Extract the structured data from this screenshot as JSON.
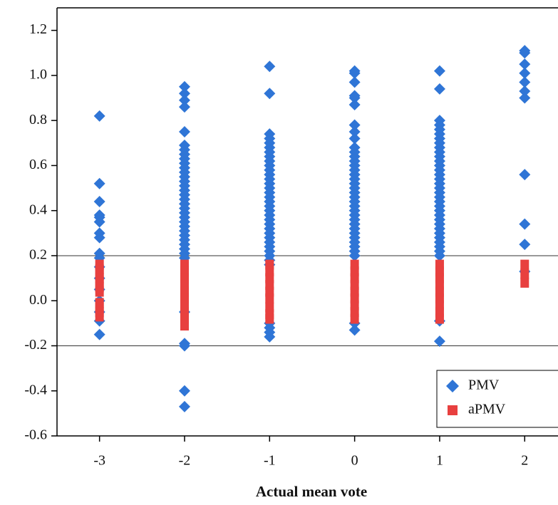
{
  "chart_data": {
    "type": "scatter",
    "xlabel": "Actual mean vote",
    "xlim": [
      -3.5,
      2.4
    ],
    "xticks": [
      -3,
      -2,
      -1,
      0,
      1,
      2
    ],
    "ylim": [
      -0.6,
      1.3
    ],
    "yticks": [
      -0.6,
      -0.4,
      -0.2,
      0,
      0.2,
      0.4,
      0.6,
      0.8,
      1.0,
      1.2
    ],
    "hlines": [
      0.2,
      -0.2
    ],
    "legend": "lower right",
    "series": [
      {
        "name": "PMV",
        "color": "#2f75d6",
        "marker": "diamond",
        "x": [
          -3,
          -3,
          -3,
          -3,
          -3,
          -3,
          -3,
          -3,
          -3,
          -3,
          -3,
          -3,
          -3,
          -3,
          -3,
          -3,
          -3,
          -2,
          -2,
          -2,
          -2,
          -2,
          -2,
          -2,
          -2,
          -2,
          -2,
          -2,
          -2,
          -2,
          -2,
          -2,
          -2,
          -2,
          -2,
          -2,
          -2,
          -2,
          -2,
          -2,
          -2,
          -2,
          -2,
          -2,
          -2,
          -2,
          -2,
          -2,
          -2,
          -2,
          -2,
          -2,
          -2,
          -1,
          -1,
          -1,
          -1,
          -1,
          -1,
          -1,
          -1,
          -1,
          -1,
          -1,
          -1,
          -1,
          -1,
          -1,
          -1,
          -1,
          -1,
          -1,
          -1,
          -1,
          -1,
          -1,
          -1,
          -1,
          -1,
          -1,
          -1,
          -1,
          -1,
          -1,
          -1,
          -1,
          -1,
          -1,
          -1,
          0,
          0,
          0,
          0,
          0,
          0,
          0,
          0,
          0,
          0,
          0,
          0,
          0,
          0,
          0,
          0,
          0,
          0,
          0,
          0,
          0,
          0,
          0,
          0,
          0,
          0,
          0,
          0,
          0,
          0,
          0,
          0,
          0,
          0,
          0,
          0,
          1,
          1,
          1,
          1,
          1,
          1,
          1,
          1,
          1,
          1,
          1,
          1,
          1,
          1,
          1,
          1,
          1,
          1,
          1,
          1,
          1,
          1,
          1,
          1,
          1,
          1,
          1,
          1,
          1,
          1,
          1,
          1,
          1,
          1,
          1,
          2,
          2,
          2,
          2,
          2,
          2,
          2,
          2,
          2,
          2,
          2
        ],
        "values": [
          0.82,
          0.52,
          0.44,
          0.38,
          0.37,
          0.35,
          0.3,
          0.28,
          0.21,
          0.19,
          0.15,
          0.1,
          0.05,
          0,
          -0.05,
          -0.09,
          -0.15,
          0.95,
          0.92,
          0.89,
          0.86,
          0.75,
          0.69,
          0.67,
          0.65,
          0.63,
          0.61,
          0.59,
          0.57,
          0.55,
          0.53,
          0.51,
          0.49,
          0.47,
          0.45,
          0.43,
          0.41,
          0.39,
          0.37,
          0.35,
          0.33,
          0.31,
          0.29,
          0.27,
          0.25,
          0.23,
          0.21,
          0.19,
          -0.05,
          -0.19,
          -0.2,
          -0.4,
          -0.47,
          1.04,
          0.92,
          0.74,
          0.72,
          0.7,
          0.68,
          0.66,
          0.64,
          0.62,
          0.6,
          0.58,
          0.56,
          0.54,
          0.52,
          0.5,
          0.48,
          0.46,
          0.44,
          0.42,
          0.4,
          0.38,
          0.36,
          0.34,
          0.32,
          0.3,
          0.28,
          0.26,
          0.24,
          0.22,
          0.2,
          0.18,
          0.16,
          -0.1,
          -0.12,
          -0.14,
          -0.16,
          1.02,
          1.01,
          0.97,
          0.91,
          0.9,
          0.87,
          0.78,
          0.75,
          0.72,
          0.68,
          0.66,
          0.64,
          0.62,
          0.6,
          0.58,
          0.56,
          0.54,
          0.52,
          0.5,
          0.48,
          0.46,
          0.44,
          0.42,
          0.4,
          0.38,
          0.36,
          0.34,
          0.32,
          0.3,
          0.28,
          0.26,
          0.24,
          0.22,
          0.2,
          -0.1,
          -0.13,
          1.02,
          0.94,
          0.8,
          0.78,
          0.76,
          0.74,
          0.72,
          0.7,
          0.68,
          0.66,
          0.64,
          0.62,
          0.6,
          0.58,
          0.56,
          0.54,
          0.52,
          0.5,
          0.48,
          0.46,
          0.44,
          0.42,
          0.4,
          0.38,
          0.36,
          0.34,
          0.32,
          0.3,
          0.28,
          0.26,
          0.24,
          0.22,
          0.2,
          -0.09,
          -0.18,
          1.11,
          1.1,
          1.05,
          1.01,
          0.97,
          0.93,
          0.9,
          0.56,
          0.34,
          0.25,
          0.13
        ]
      },
      {
        "name": "aPMV",
        "color": "#e8403f",
        "marker": "square",
        "x": [
          -3,
          -3,
          -3,
          -3,
          -3,
          -3,
          -3,
          -3,
          -3,
          -3,
          -3,
          -2,
          -2,
          -2,
          -2,
          -2,
          -2,
          -2,
          -2,
          -2,
          -2,
          -1,
          -1,
          -1,
          -1,
          -1,
          -1,
          -1,
          -1,
          -1,
          0,
          0,
          0,
          0,
          0,
          0,
          0,
          0,
          0,
          1,
          1,
          1,
          1,
          1,
          1,
          1,
          1,
          1,
          2,
          2,
          2
        ],
        "values": [
          0.16,
          0.14,
          0.12,
          0.1,
          0.08,
          0.06,
          0.04,
          -0.01,
          -0.03,
          -0.05,
          -0.07,
          0.16,
          0.13,
          0.1,
          0.07,
          0.04,
          0.01,
          -0.02,
          -0.05,
          -0.08,
          -0.11,
          0.16,
          0.13,
          0.1,
          0.07,
          0.04,
          0.01,
          -0.03,
          -0.06,
          -0.08,
          0.16,
          0.13,
          0.1,
          0.07,
          0.04,
          0.01,
          -0.02,
          -0.05,
          -0.08,
          0.16,
          0.13,
          0.1,
          0.07,
          0.04,
          0.01,
          -0.02,
          -0.05,
          -0.08,
          0.16,
          0.12,
          0.08
        ]
      }
    ]
  }
}
